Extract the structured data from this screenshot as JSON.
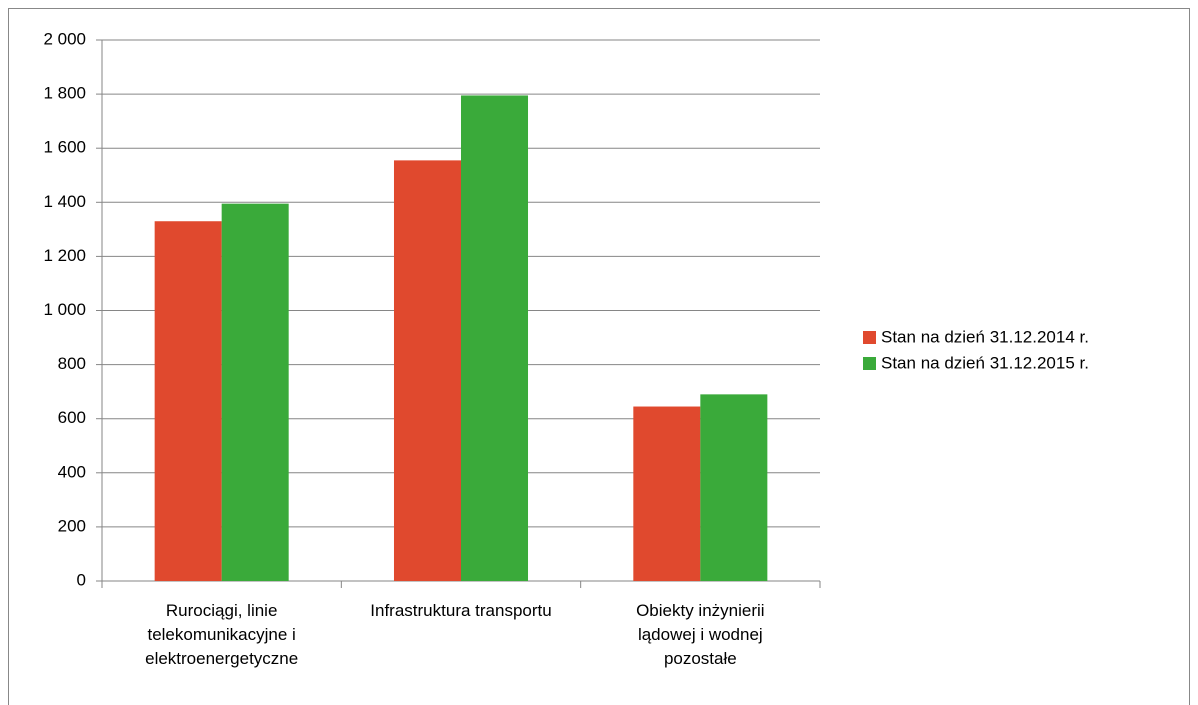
{
  "chart_data": {
    "type": "bar",
    "categories": [
      "Rurociągi, linie telekomunikacyjne i elektroenergetyczne",
      "Infrastruktura transportu",
      "Obiekty inżynierii lądowej i wodnej pozostałe"
    ],
    "series": [
      {
        "name": "Stan na dzień 31.12.2014 r.",
        "color": "#e0492e",
        "values": [
          1330,
          1555,
          645
        ]
      },
      {
        "name": "Stan na dzień 31.12.2015 r.",
        "color": "#3aaa3a",
        "values": [
          1395,
          1795,
          690
        ]
      }
    ],
    "ylim": [
      0,
      2000
    ],
    "yticks": [
      0,
      200,
      400,
      600,
      800,
      {
        "value": 1000,
        "label": "1 000"
      },
      {
        "value": 1200,
        "label": "1 200"
      },
      {
        "value": 1400,
        "label": "1 400"
      },
      {
        "value": 1600,
        "label": "1 600"
      },
      {
        "value": 1800,
        "label": "1 800"
      },
      {
        "value": 2000,
        "label": "2 000"
      }
    ],
    "grid": true,
    "legend": "right"
  }
}
